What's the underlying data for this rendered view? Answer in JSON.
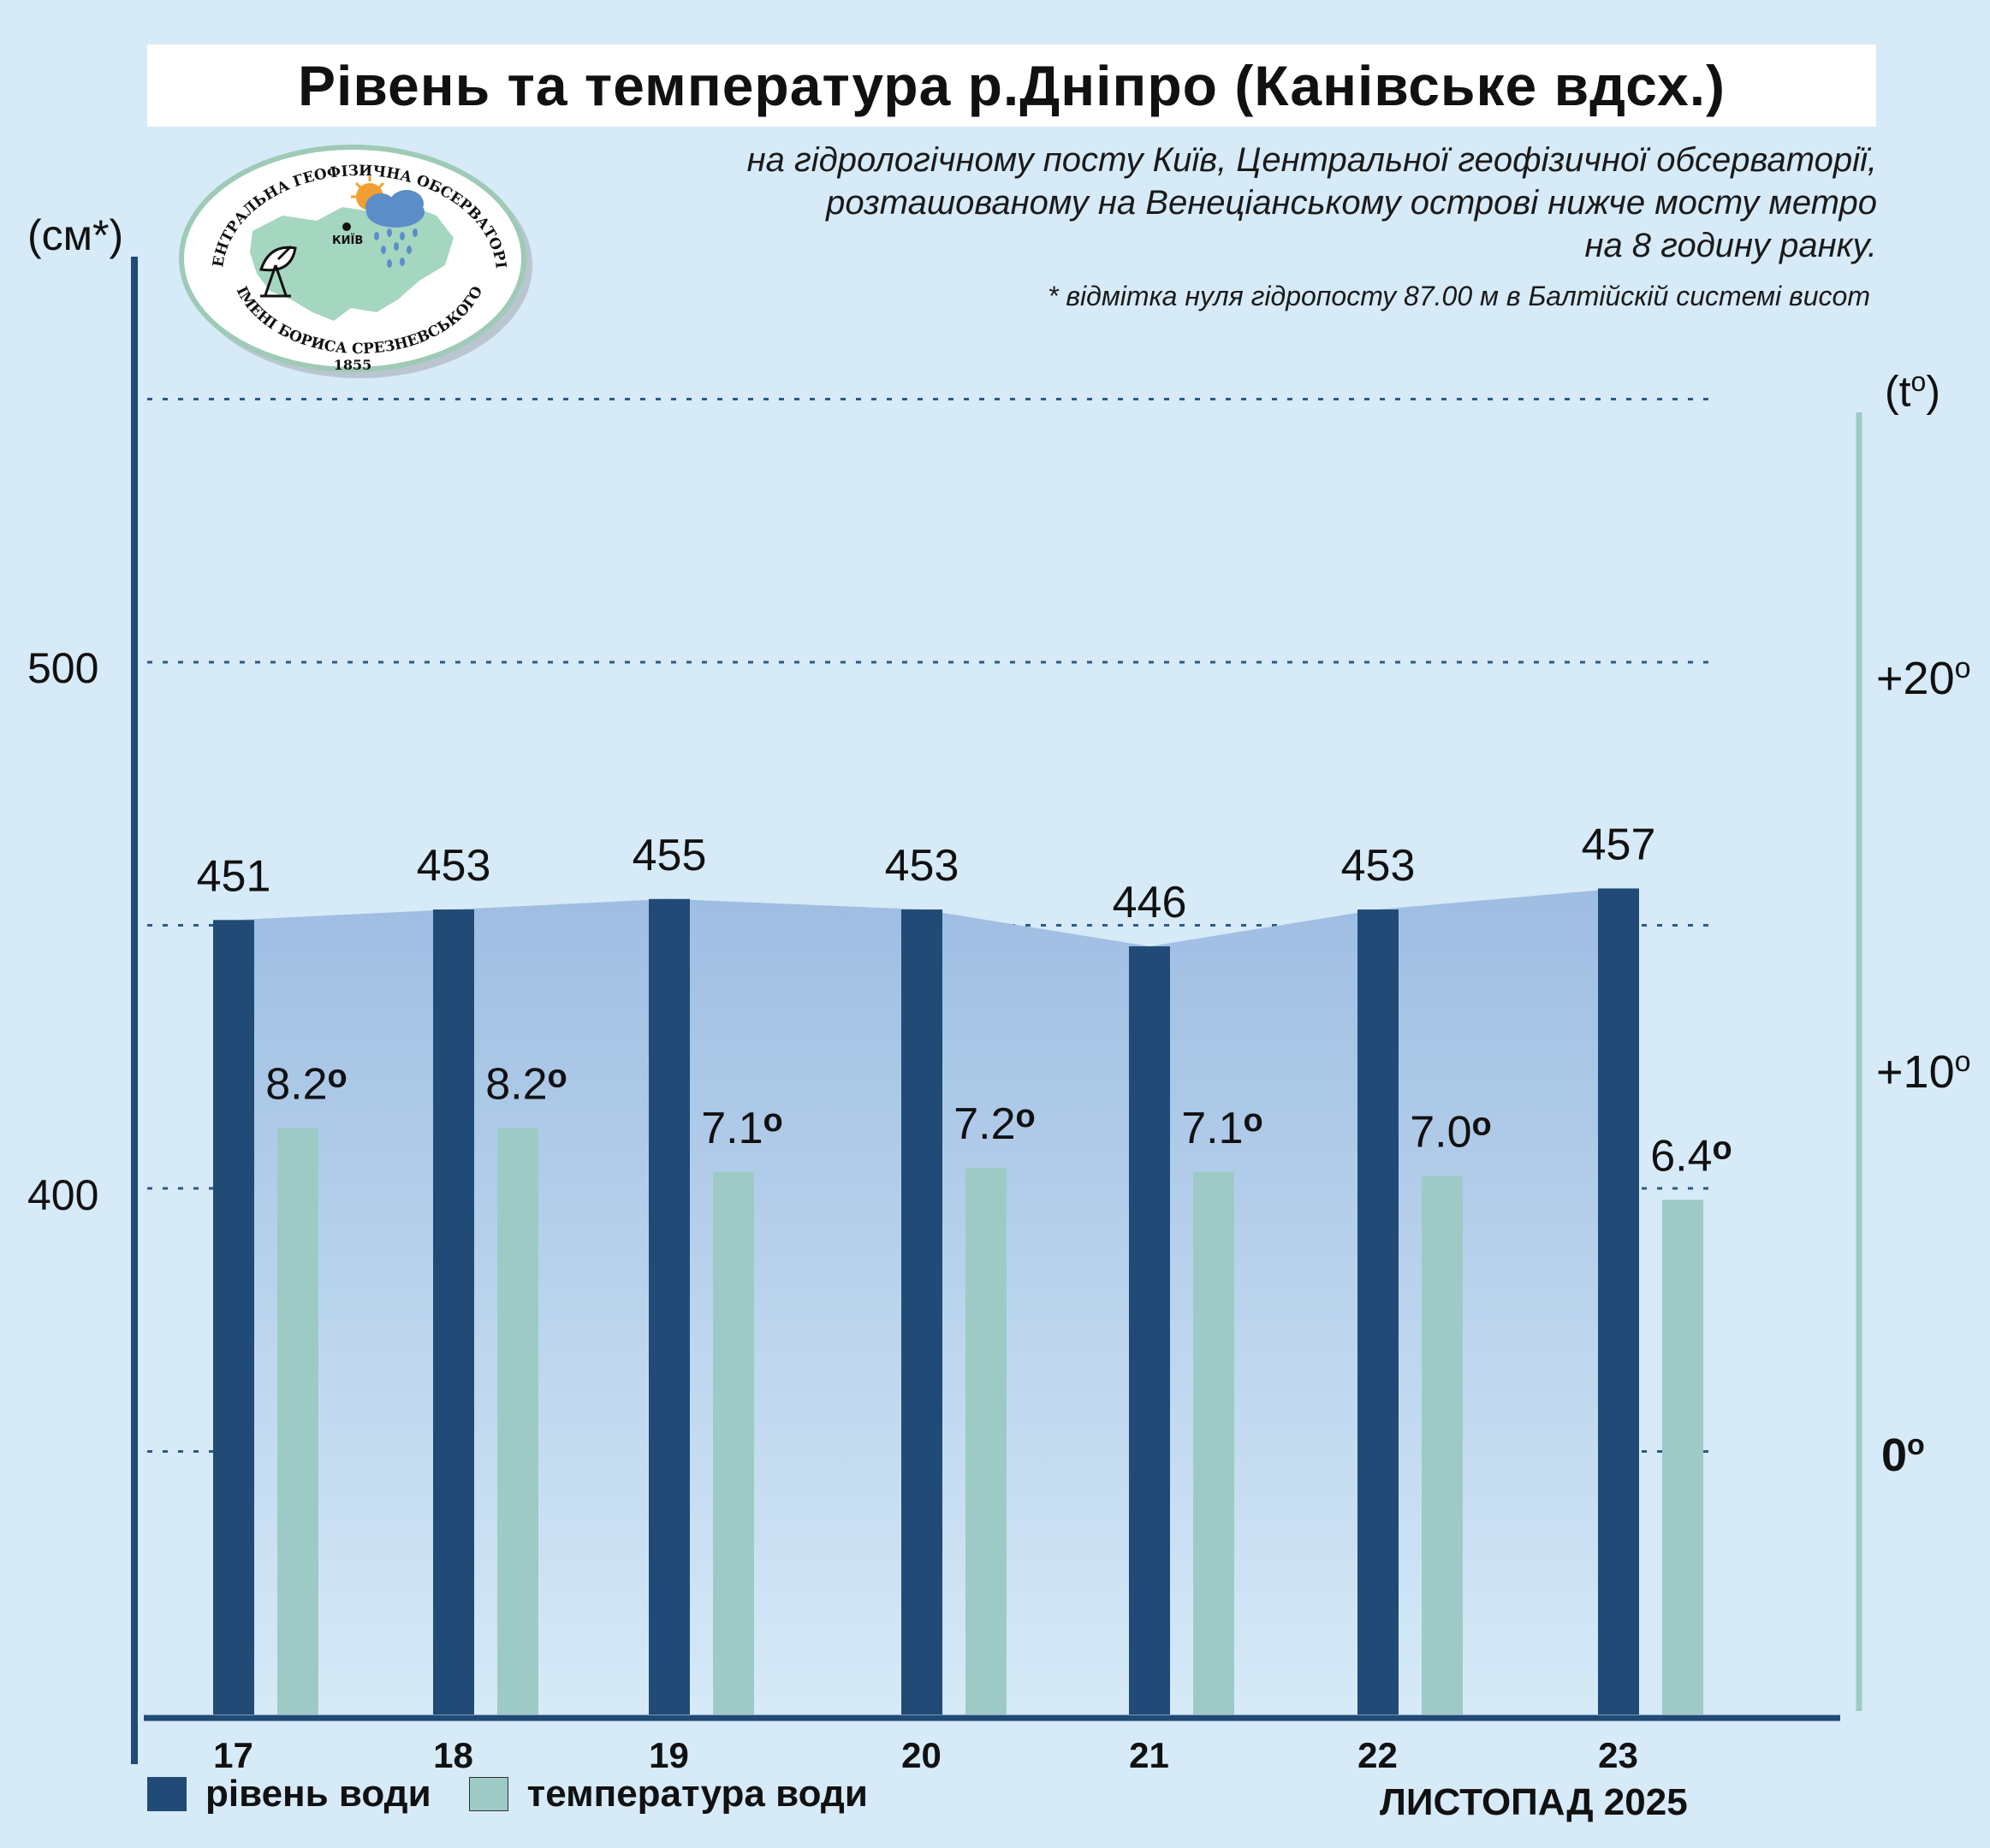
{
  "title": "Рівень та температура р.Дніпро (Канівське вдсх.)",
  "subtitle_lines": [
    "на гідрологічному посту Київ, Центральної геофізичної обсерваторії,",
    "розташованому на Венеціанському острові нижче мосту метро",
    "на 8 годину ранку."
  ],
  "footnote": "* відмітка нуля гідропосту 87.00 м в Балтійскій системі висот",
  "logo": {
    "text_top": "ЦЕНТРАЛЬНА ГЕОФІЗИЧНА ОБСЕРВАТОРІЯ",
    "text_bottom": "ІМЕНІ БОРИСА СРЕЗНЕВСЬКОГО",
    "year": "1855",
    "city": "КИЇВ"
  },
  "legend": {
    "level": "рівень води",
    "temperature": "температура води"
  },
  "month_label": "ЛИСТОПАД 2025",
  "colors": {
    "background": "#d6eaf7",
    "level_bar": "#214b76",
    "temp_bar": "#9ecac6",
    "area_top": "#9ebde2",
    "area_bottom": "#d6eaf7",
    "gridline": "#2a5a8a",
    "left_axis": "#214b76",
    "right_axis": "#9ecac6"
  },
  "chart_data": {
    "type": "bar",
    "categories": [
      "17",
      "18",
      "19",
      "20",
      "21",
      "22",
      "23"
    ],
    "series": [
      {
        "name": "рівень води",
        "axis": "left",
        "values": [
          451,
          453,
          455,
          453,
          446,
          453,
          457
        ],
        "labels": [
          "451",
          "453",
          "455",
          "453",
          "446",
          "453",
          "457"
        ]
      },
      {
        "name": "температура води",
        "axis": "right",
        "values": [
          8.2,
          8.2,
          7.1,
          7.2,
          7.1,
          7.0,
          6.4
        ],
        "labels": [
          "8.2",
          "8.2",
          "7.1",
          "7.2",
          "7.1",
          "7.0",
          "6.4"
        ]
      }
    ],
    "left_axis": {
      "unit_label": "(см*)",
      "tick_labels": [
        "500",
        "400"
      ],
      "tick_values": [
        500,
        400
      ]
    },
    "right_axis": {
      "unit_label": "(t",
      "unit_sup": "o",
      "unit_close": ")",
      "tick_labels": [
        "+20",
        "+10",
        "0"
      ],
      "tick_values": [
        20,
        10,
        0
      ],
      "degree": "o"
    },
    "gridlines_left_values": [
      550,
      500,
      450,
      400,
      350
    ],
    "area_fill_under_level": true,
    "legend_position": "bottom-left"
  }
}
